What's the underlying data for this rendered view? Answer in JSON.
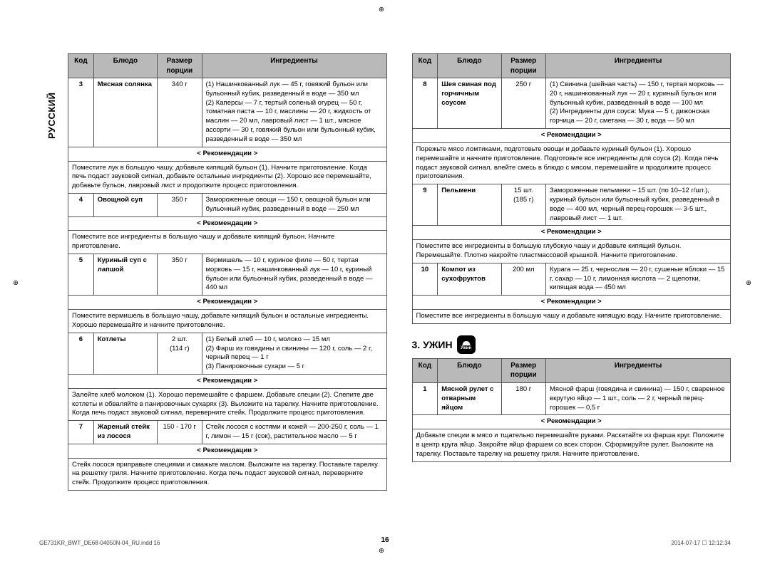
{
  "lang_label": "РУССКИЙ",
  "page_number": "16",
  "footer_left": "GE731KR_BWT_DE68-04050N-04_RU.indd   16",
  "footer_right": "2014-07-17   ☐ 12:12:34",
  "reco_label": "< Рекомендации >",
  "headers": {
    "code": "Код",
    "dish": "Блюдо",
    "size": "Размер порции",
    "ingr": "Ингредиенты"
  },
  "section3_title": "3. УЖИН",
  "section3_icon": "Ужин",
  "left_table": [
    {
      "code": "3",
      "dish": "Мясная солянка",
      "size": "340 г",
      "ingr": "(1) Нашинкованный лук — 45 г, говяжий бульон или бульонный кубик, разведенный в воде — 350 мл\n(2) Каперсы — 7 г, тертый соленый огурец — 50 г, томатная паста — 10 г, маслины — 20 г, жидкость от маслин — 20 мл, лавровый лист — 1 шт., мясное ассорти — 30 г, говяжий бульон или бульонный кубик, разведенный в воде — 350 мл",
      "reco": "Поместите лук в большую чашу, добавьте кипящий бульон (1). Начните приготовление. Когда печь подаст звуковой сигнал, добавьте остальные ингредиенты (2). Хорошо все перемешайте, добавьте бульон, лавровый лист и продолжите процесс приготовления."
    },
    {
      "code": "4",
      "dish": "Овощной суп",
      "size": "350 г",
      "ingr": "Замороженные овощи — 150 г, овощной бульон или бульонный кубик, разведенный в воде — 250 мл",
      "reco": "Поместите все ингредиенты в большую чашу и добавьте кипящий бульон. Начните приготовление."
    },
    {
      "code": "5",
      "dish": "Куриный суп с лапшой",
      "size": "350 г",
      "ingr": "Вермишель — 10 г, куриное филе — 50 г, тертая морковь — 15 г, нашинкованный лук — 10 г, куриный бульон или бульонный кубик, разведенный в воде — 440 мл",
      "reco": "Поместите вермишель в большую чашу, добавьте кипящий бульон и остальные ингредиенты. Хорошо перемешайте и начните приготовление."
    },
    {
      "code": "6",
      "dish": "Котлеты",
      "size": "2 шт.\n(114 г)",
      "ingr": "(1) Белый хлеб — 10 г, молоко — 15 мл\n(2) Фарш из говядины и свинины — 120 г, соль — 2 г, черный перец — 1 г\n(3) Панировочные сухари — 5 г",
      "reco": "Залейте хлеб молоком (1). Хорошо перемешайте с фаршем. Добавьте специи (2). Слепите две котлеты и обваляйте в панировочных сухарях (3). Выложите на тарелку. Начните приготовление. Когда печь подаст звуковой сигнал, переверните стейк. Продолжите процесс приготовления."
    },
    {
      "code": "7",
      "dish": "Жареный стейк из лосося",
      "size": "150 - 170 г",
      "ingr": "Стейк лосося с костями и кожей — 200-250 г, соль — 1 г, лимон — 15 г (сок), растительное масло — 5 г",
      "reco": "Стейк лосося приправьте специями и смажьте маслом. Выложите на тарелку. Поставьте тарелку на решетку гриля. Начните приготовление. Когда печь подаст звуковой сигнал, переверните стейк. Продолжите процесс приготовления."
    }
  ],
  "right_table": [
    {
      "code": "8",
      "dish": "Шея свиная под горчичным соусом",
      "size": "250 г",
      "ingr": "(1) Свинина (шейная часть) — 150 г, тертая морковь — 20 г, нашинкованный лук — 20 г, куриный бульон или бульонный кубик, разведенный в воде — 100 мл\n(2) Ингредиенты для соуса: Мука — 5 г, дижонская горчица — 20 г, сметана — 30 г, вода — 50 мл",
      "reco": "Порежьте мясо ломтиками, подготовьте овощи и добавьте куриный бульон (1). Хорошо перемешайте и начните приготовление. Подготовьте все ингредиенты для соуса (2). Когда печь подаст звуковой сигнал, влейте смесь в блюдо с мясом, перемешайте и продолжите процесс приготовления."
    },
    {
      "code": "9",
      "dish": "Пельмени",
      "size": "15 шт.\n(185 г)",
      "ingr": "Замороженные пельмени – 15 шт. (по 10–12 г/шт.), куриный бульон или бульонный кубик, разведенный в воде — 400 мл, черный перец-горошек — 3-5 шт., лавровый лист — 1 шт.",
      "reco": "Поместите все ингредиенты в большую глубокую чашу и добавьте кипящий бульон. Перемешайте. Плотно накройте пластмассовой крышкой. Начните приготовление."
    },
    {
      "code": "10",
      "dish": "Компот из сухофруктов",
      "size": "200 мл",
      "ingr": "Курага — 25 г, чернослив — 20 г, сушеные яблоки — 15 г, сахар — 10 г, лимонная кислота — 2 щепотки, кипящая вода — 450 мл",
      "reco": "Поместите все ингредиенты в большую чашу и добавьте кипящую воду. Начните приготовление."
    }
  ],
  "section3_table": [
    {
      "code": "1",
      "dish": "Мясной рулет с отварным яйцом",
      "size": "180 г",
      "ingr": "Мясной фарш (говядина и свинина) — 150 г, сваренное вкрутую яйцо — 1 шт., соль — 2 г, черный перец-горошек — 0,5 г",
      "reco": "Добавьте специи в мясо и тщательно перемешайте руками. Раскатайте из фарша круг. Положите в центр круга яйцо. Закройте яйцо фаршем со всех сторон. Сформируйте рулет. Выложите на тарелку. Поставьте тарелку на решетку гриля. Начните приготовление."
    }
  ]
}
